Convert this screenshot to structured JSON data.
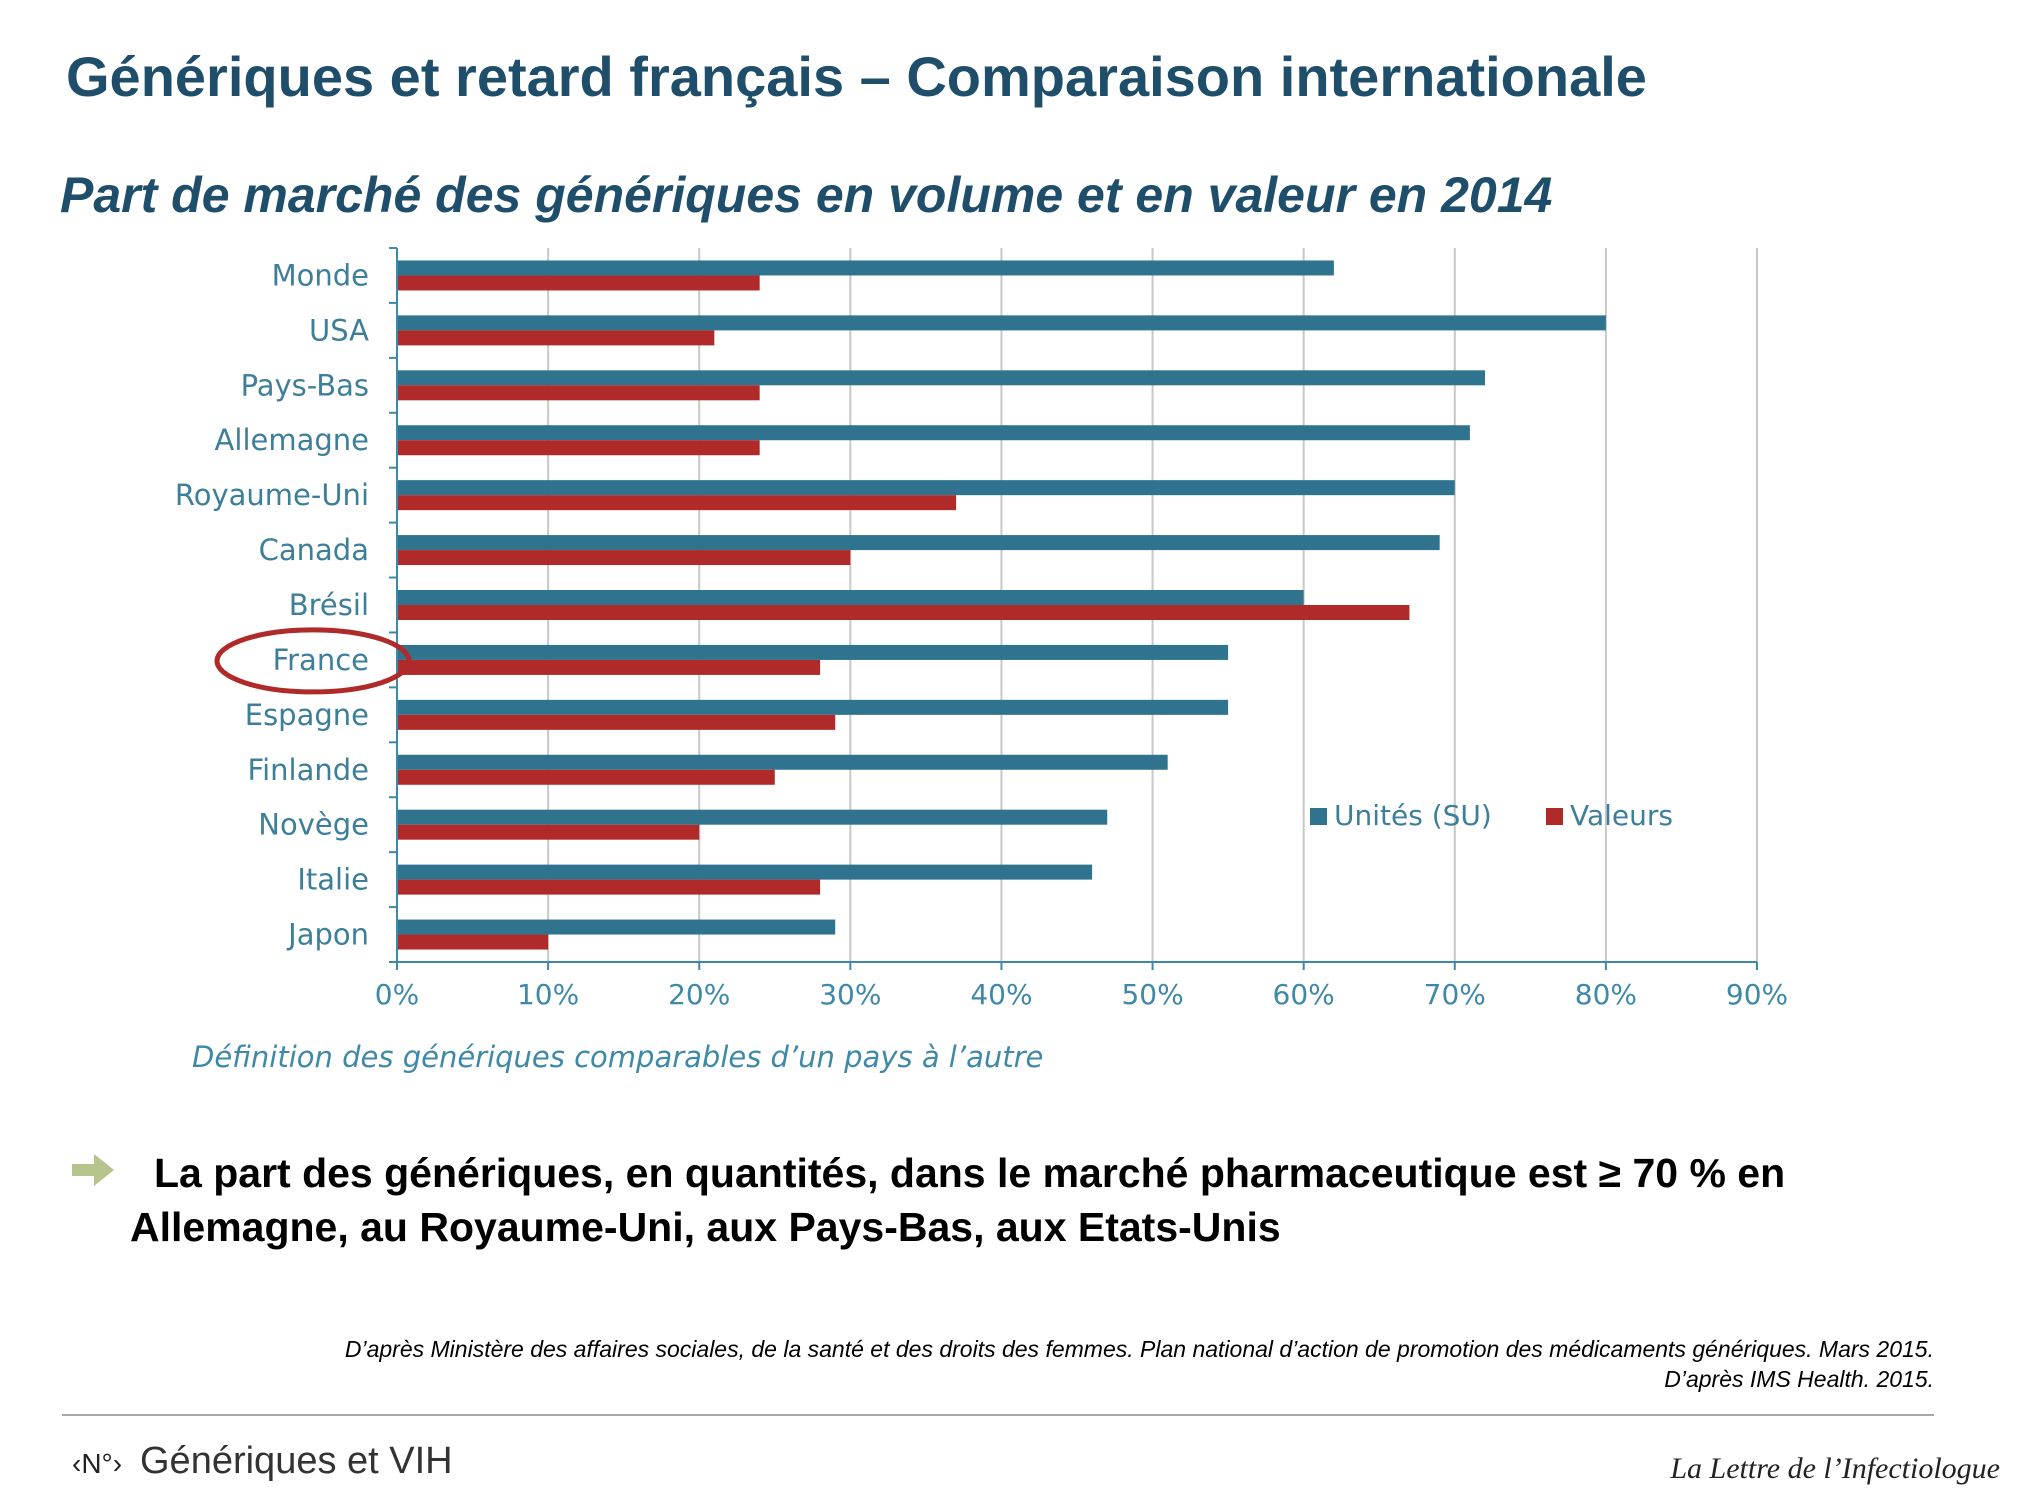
{
  "slide": {
    "title": "Génériques et retard français – Comparaison internationale",
    "bullet": "La part des génériques, en quantités, dans le marché pharmaceutique est ≥ 70 % en Allemagne, au Royaume-Uni, aux Pays-Bas, aux Etats-Unis",
    "sources": [
      "D’après Ministère des affaires sociales, de la santé et des droits des femmes. Plan national d’action de promotion des médicaments génériques. Mars 2015.",
      "D’après IMS Health. 2015."
    ],
    "footer": {
      "logo": "‹N°›",
      "section": "Génériques et VIH",
      "journal": "La Lettre de l’Infectiologue"
    }
  },
  "chart_data": {
    "type": "bar",
    "orientation": "horizontal",
    "title": "Part de marché des génériques en volume et en valeur en 2014",
    "note": "Définition  des génériques comparables d’un pays à l’autre",
    "categories": [
      "Monde",
      "USA",
      "Pays-Bas",
      "Allemagne",
      "Royaume-Uni",
      "Canada",
      "Brésil",
      "France",
      "Espagne",
      "Finlande",
      "Novège",
      "Italie",
      "Japon"
    ],
    "highlighted_category": "France",
    "series": [
      {
        "name": "Unités (SU)",
        "color": "#2f738e",
        "values": [
          62,
          80,
          72,
          71,
          70,
          69,
          60,
          55,
          55,
          51,
          47,
          46,
          29
        ]
      },
      {
        "name": "Valeurs",
        "color": "#b02a2a",
        "values": [
          24,
          21,
          24,
          24,
          37,
          30,
          67,
          28,
          29,
          25,
          20,
          28,
          10
        ]
      }
    ],
    "xlim": [
      0,
      90
    ],
    "xticks": [
      "0%",
      "10%",
      "20%",
      "30%",
      "40%",
      "50%",
      "60%",
      "70%",
      "80%",
      "90%"
    ],
    "grid": true,
    "legend_position": "lower-right",
    "highlight_color": "#b02a2a",
    "axis_color": "#3f89a8",
    "grid_color": "#c8c8c8"
  }
}
